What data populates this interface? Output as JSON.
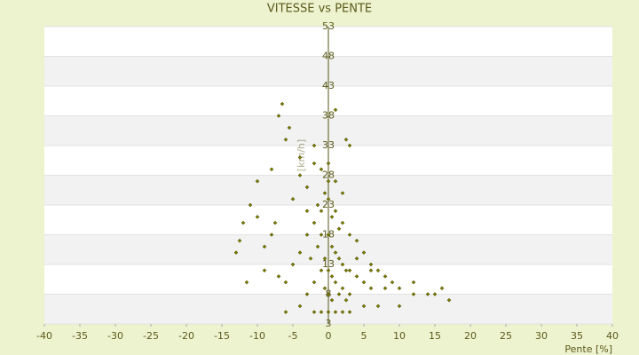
{
  "chart_data": {
    "type": "scatter",
    "title": "VITESSE vs PENTE",
    "x_label": "Pente [%]",
    "y_label": "[km/h]",
    "color": "#7d7d00",
    "x": [
      -6.5,
      -7,
      -5.5,
      -6,
      -8,
      -10,
      -11,
      -12,
      -12.5,
      -13,
      -11.5,
      -9,
      -7,
      -7.5,
      -5,
      -4,
      -3,
      -2,
      -1,
      0,
      1,
      2.5,
      3,
      -1,
      0,
      1,
      2,
      3,
      4,
      5,
      6,
      7,
      8,
      9,
      10,
      12,
      14,
      15,
      16,
      17,
      -2,
      -3,
      -4,
      -5,
      -6,
      -1,
      0,
      0.5,
      1,
      1.5,
      2,
      2.5,
      3,
      4,
      5,
      6,
      -0.5,
      -1.5,
      -2.5,
      0,
      0.5,
      1,
      2,
      3,
      -1,
      -2,
      -3,
      0,
      1,
      2,
      3,
      -1,
      -2,
      -4,
      -6,
      0.5,
      1.5,
      -0.5,
      -1.5,
      0,
      -2,
      -4,
      1,
      2,
      -3,
      4,
      6,
      8,
      10,
      -8,
      -9,
      -10,
      0,
      0.5,
      -0.5,
      1.5,
      2.5,
      5,
      7,
      12
    ],
    "values": [
      40,
      38,
      36,
      34,
      29,
      27,
      23,
      20,
      17,
      15,
      10,
      12,
      11,
      20,
      24,
      28,
      26,
      30,
      29,
      27,
      39,
      34,
      33,
      22,
      24,
      22,
      20,
      18,
      17,
      15,
      13,
      12,
      11,
      10,
      9,
      10,
      8,
      8,
      9,
      7,
      20,
      18,
      15,
      13,
      10,
      18,
      18,
      16,
      15,
      14,
      13,
      12,
      12,
      11,
      10,
      9,
      14,
      16,
      14,
      12,
      11,
      10,
      9,
      8,
      12,
      10,
      8,
      5,
      5,
      5,
      5,
      5,
      5,
      6,
      5,
      21,
      19,
      25,
      23,
      30,
      33,
      31,
      27,
      25,
      22,
      14,
      12,
      9,
      6,
      18,
      16,
      21,
      8,
      7,
      9,
      8,
      7,
      6,
      6,
      8
    ],
    "xlim": [
      -40,
      40
    ],
    "xticks": [
      -40,
      -35,
      -30,
      -25,
      -20,
      -15,
      -10,
      -5,
      0,
      5,
      10,
      15,
      20,
      25,
      30,
      35,
      40
    ],
    "ylim": [
      3,
      53
    ],
    "yticks": [
      53,
      48,
      43,
      38,
      33,
      28,
      23,
      18,
      13,
      8,
      3
    ],
    "grid": true
  }
}
